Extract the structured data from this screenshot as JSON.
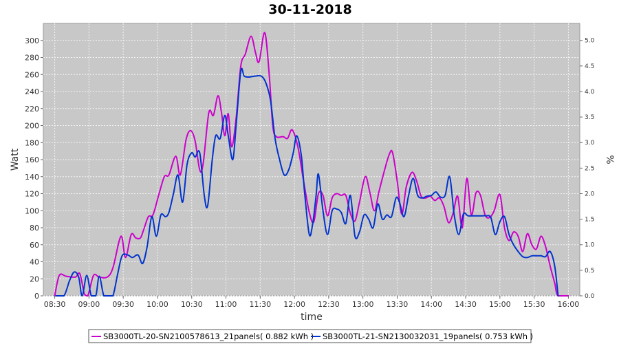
{
  "chart_data": {
    "type": "line",
    "title": "30-11-2018",
    "xlabel": "time",
    "ylabel": "Watt",
    "ylabel_right": "%",
    "x_ticks": [
      "08:30",
      "09:00",
      "09:30",
      "10:00",
      "10:30",
      "11:00",
      "11:30",
      "12:00",
      "12:30",
      "13:00",
      "13:30",
      "14:00",
      "14:30",
      "15:00",
      "15:30",
      "16:00"
    ],
    "xlim": [
      "08:20",
      "16:10"
    ],
    "ylim": [
      0,
      320
    ],
    "y_ticks": [
      0,
      20,
      40,
      60,
      80,
      100,
      120,
      140,
      160,
      180,
      200,
      220,
      240,
      260,
      280,
      300
    ],
    "y2lim": [
      0,
      5.333
    ],
    "y2_ticks": [
      "0.0",
      "0.5",
      "1.0",
      "1.5",
      "2.0",
      "2.5",
      "3.0",
      "3.5",
      "4.0",
      "4.5",
      "5.0"
    ],
    "grid": true,
    "legend": "bottom",
    "colors": {
      "plot_bg": "#c8c8c8",
      "grid": "#f4f4f4",
      "magenta": "#cc00cc",
      "blue": "#0033cc"
    },
    "series": [
      {
        "name": "SB3000TL-20-SN2100578613_21panels( 0.882 kWh )",
        "color": "#cc00cc",
        "points": [
          [
            "08:30",
            0
          ],
          [
            "08:34",
            24
          ],
          [
            "08:40",
            23
          ],
          [
            "08:48",
            22
          ],
          [
            "08:52",
            26
          ],
          [
            "08:56",
            2
          ],
          [
            "08:59",
            0
          ],
          [
            "09:04",
            24
          ],
          [
            "09:09",
            22
          ],
          [
            "09:16",
            22
          ],
          [
            "09:21",
            33
          ],
          [
            "09:28",
            70
          ],
          [
            "09:32",
            45
          ],
          [
            "09:37",
            72
          ],
          [
            "09:41",
            68
          ],
          [
            "09:45",
            68
          ],
          [
            "09:48",
            78
          ],
          [
            "09:52",
            93
          ],
          [
            "09:56",
            95
          ],
          [
            "10:01",
            118
          ],
          [
            "10:06",
            140
          ],
          [
            "10:10",
            142
          ],
          [
            "10:16",
            164
          ],
          [
            "10:20",
            142
          ],
          [
            "10:25",
            183
          ],
          [
            "10:29",
            194
          ],
          [
            "10:33",
            182
          ],
          [
            "10:37",
            148
          ],
          [
            "10:40",
            155
          ],
          [
            "10:45",
            215
          ],
          [
            "10:49",
            212
          ],
          [
            "10:53",
            235
          ],
          [
            "10:56",
            216
          ],
          [
            "10:59",
            188
          ],
          [
            "11:02",
            214
          ],
          [
            "11:05",
            175
          ],
          [
            "11:09",
            210
          ],
          [
            "11:13",
            270
          ],
          [
            "11:17",
            284
          ],
          [
            "11:22",
            305
          ],
          [
            "11:26",
            285
          ],
          [
            "11:29",
            275
          ],
          [
            "11:34",
            309
          ],
          [
            "11:38",
            258
          ],
          [
            "11:41",
            200
          ],
          [
            "11:44",
            187
          ],
          [
            "11:50",
            187
          ],
          [
            "11:54",
            185
          ],
          [
            "11:58",
            195
          ],
          [
            "12:03",
            175
          ],
          [
            "12:08",
            135
          ],
          [
            "12:13",
            98
          ],
          [
            "12:17",
            87
          ],
          [
            "12:21",
            120
          ],
          [
            "12:25",
            118
          ],
          [
            "12:29",
            94
          ],
          [
            "12:33",
            115
          ],
          [
            "12:37",
            120
          ],
          [
            "12:41",
            118
          ],
          [
            "12:45",
            118
          ],
          [
            "12:49",
            97
          ],
          [
            "12:53",
            88
          ],
          [
            "12:57",
            110
          ],
          [
            "13:02",
            140
          ],
          [
            "13:06",
            122
          ],
          [
            "13:10",
            100
          ],
          [
            "13:14",
            122
          ],
          [
            "13:18",
            143
          ],
          [
            "13:23",
            166
          ],
          [
            "13:26",
            168
          ],
          [
            "13:30",
            135
          ],
          [
            "13:34",
            96
          ],
          [
            "13:38",
            128
          ],
          [
            "13:43",
            145
          ],
          [
            "13:47",
            135
          ],
          [
            "13:51",
            117
          ],
          [
            "13:55",
            115
          ],
          [
            "13:59",
            117
          ],
          [
            "14:03",
            112
          ],
          [
            "14:07",
            115
          ],
          [
            "14:11",
            105
          ],
          [
            "14:15",
            86
          ],
          [
            "14:19",
            97
          ],
          [
            "14:23",
            117
          ],
          [
            "14:27",
            80
          ],
          [
            "14:31",
            138
          ],
          [
            "14:35",
            95
          ],
          [
            "14:39",
            121
          ],
          [
            "14:43",
            118
          ],
          [
            "14:47",
            95
          ],
          [
            "14:51",
            92
          ],
          [
            "14:55",
            100
          ],
          [
            "15:00",
            119
          ],
          [
            "15:04",
            80
          ],
          [
            "15:08",
            65
          ],
          [
            "15:12",
            75
          ],
          [
            "15:16",
            70
          ],
          [
            "15:20",
            52
          ],
          [
            "15:24",
            73
          ],
          [
            "15:28",
            60
          ],
          [
            "15:32",
            55
          ],
          [
            "15:36",
            70
          ],
          [
            "15:40",
            58
          ],
          [
            "15:44",
            35
          ],
          [
            "15:48",
            15
          ],
          [
            "15:51",
            0
          ],
          [
            "16:00",
            0
          ]
        ]
      },
      {
        "name": "SB3000TL-21-SN2130032031_19panels( 0.753 kWh )",
        "color": "#0033cc",
        "points": [
          [
            "08:31",
            0
          ],
          [
            "08:38",
            0
          ],
          [
            "08:43",
            18
          ],
          [
            "08:47",
            28
          ],
          [
            "08:51",
            22
          ],
          [
            "08:54",
            0
          ],
          [
            "08:58",
            24
          ],
          [
            "09:02",
            0
          ],
          [
            "09:06",
            0
          ],
          [
            "09:09",
            23
          ],
          [
            "09:13",
            0
          ],
          [
            "09:17",
            0
          ],
          [
            "09:21",
            0
          ],
          [
            "09:25",
            25
          ],
          [
            "09:29",
            47
          ],
          [
            "09:34",
            48
          ],
          [
            "09:38",
            45
          ],
          [
            "09:43",
            48
          ],
          [
            "09:47",
            38
          ],
          [
            "09:51",
            58
          ],
          [
            "09:55",
            93
          ],
          [
            "09:59",
            70
          ],
          [
            "10:03",
            95
          ],
          [
            "10:07",
            93
          ],
          [
            "10:10",
            98
          ],
          [
            "10:14",
            120
          ],
          [
            "10:18",
            142
          ],
          [
            "10:22",
            110
          ],
          [
            "10:26",
            155
          ],
          [
            "10:30",
            168
          ],
          [
            "10:33",
            163
          ],
          [
            "10:37",
            168
          ],
          [
            "10:41",
            118
          ],
          [
            "10:44",
            106
          ],
          [
            "10:48",
            160
          ],
          [
            "10:51",
            188
          ],
          [
            "10:55",
            185
          ],
          [
            "10:59",
            212
          ],
          [
            "11:02",
            188
          ],
          [
            "11:06",
            160
          ],
          [
            "11:09",
            202
          ],
          [
            "11:13",
            264
          ],
          [
            "11:16",
            258
          ],
          [
            "11:20",
            257
          ],
          [
            "11:25",
            258
          ],
          [
            "11:31",
            258
          ],
          [
            "11:35",
            250
          ],
          [
            "11:39",
            230
          ],
          [
            "11:43",
            185
          ],
          [
            "11:47",
            160
          ],
          [
            "11:51",
            142
          ],
          [
            "11:55",
            148
          ],
          [
            "11:59",
            168
          ],
          [
            "12:02",
            188
          ],
          [
            "12:06",
            165
          ],
          [
            "12:09",
            120
          ],
          [
            "12:13",
            72
          ],
          [
            "12:16",
            85
          ],
          [
            "12:19",
            118
          ],
          [
            "12:21",
            143
          ],
          [
            "12:25",
            100
          ],
          [
            "12:29",
            72
          ],
          [
            "12:33",
            100
          ],
          [
            "12:37",
            102
          ],
          [
            "12:41",
            98
          ],
          [
            "12:45",
            85
          ],
          [
            "12:49",
            118
          ],
          [
            "12:53",
            70
          ],
          [
            "12:57",
            75
          ],
          [
            "13:01",
            95
          ],
          [
            "13:05",
            90
          ],
          [
            "13:09",
            80
          ],
          [
            "13:13",
            108
          ],
          [
            "13:17",
            90
          ],
          [
            "13:21",
            95
          ],
          [
            "13:25",
            93
          ],
          [
            "13:29",
            115
          ],
          [
            "13:32",
            110
          ],
          [
            "13:36",
            93
          ],
          [
            "13:40",
            118
          ],
          [
            "13:44",
            138
          ],
          [
            "13:48",
            118
          ],
          [
            "13:52",
            115
          ],
          [
            "13:56",
            117
          ],
          [
            "14:00",
            118
          ],
          [
            "14:04",
            122
          ],
          [
            "14:08",
            116
          ],
          [
            "14:12",
            118
          ],
          [
            "14:16",
            140
          ],
          [
            "14:20",
            95
          ],
          [
            "14:24",
            72
          ],
          [
            "14:28",
            96
          ],
          [
            "14:32",
            94
          ],
          [
            "14:36",
            94
          ],
          [
            "14:40",
            94
          ],
          [
            "14:44",
            94
          ],
          [
            "14:48",
            94
          ],
          [
            "14:52",
            92
          ],
          [
            "14:56",
            72
          ],
          [
            "15:00",
            87
          ],
          [
            "15:04",
            93
          ],
          [
            "15:08",
            72
          ],
          [
            "15:12",
            60
          ],
          [
            "15:16",
            52
          ],
          [
            "15:20",
            46
          ],
          [
            "15:24",
            45
          ],
          [
            "15:28",
            47
          ],
          [
            "15:32",
            47
          ],
          [
            "15:36",
            47
          ],
          [
            "15:40",
            46
          ],
          [
            "15:44",
            52
          ],
          [
            "15:48",
            35
          ],
          [
            "15:51",
            0
          ]
        ]
      }
    ]
  }
}
